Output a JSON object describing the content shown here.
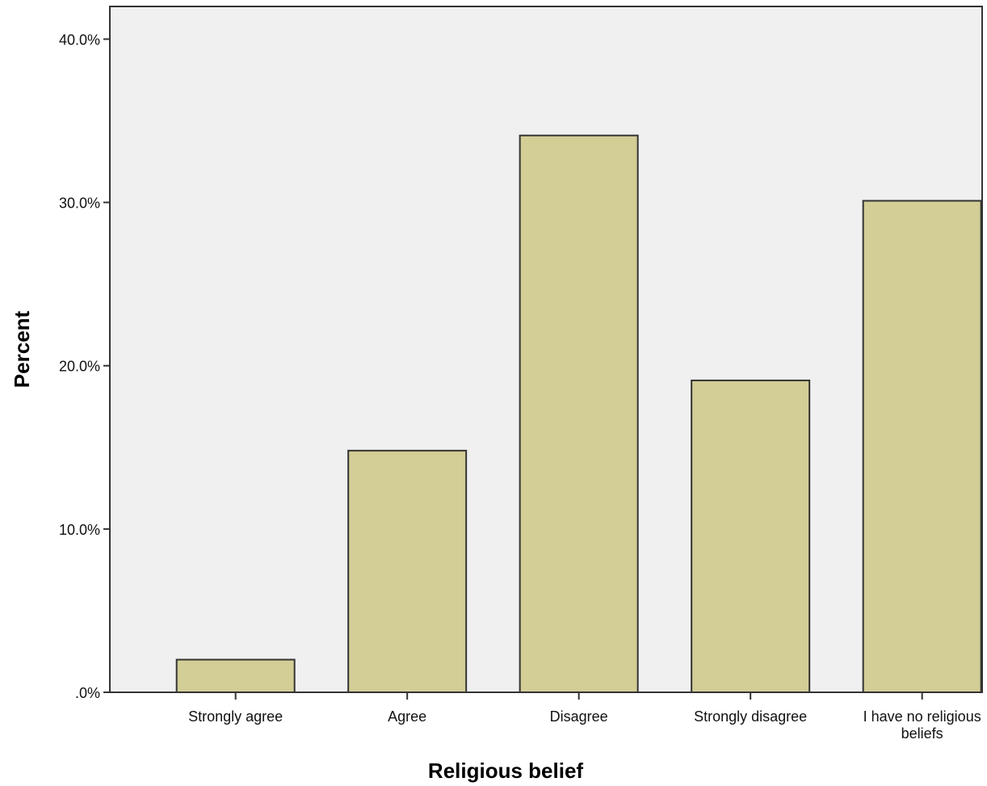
{
  "chart_data": {
    "type": "bar",
    "title": "",
    "xlabel": "Religious belief",
    "ylabel": "Percent",
    "categories": [
      [
        "Strongly agree"
      ],
      [
        "Agree"
      ],
      [
        "Disagree"
      ],
      [
        "Strongly disagree"
      ],
      [
        "I have no religious",
        "beliefs"
      ]
    ],
    "values": [
      2.0,
      14.8,
      34.1,
      19.1,
      30.1
    ],
    "ylim": [
      0,
      42
    ],
    "yticks": [
      0,
      10,
      20,
      30,
      40
    ],
    "ytick_labels": [
      ".0%",
      "10.0%",
      "20.0%",
      "30.0%",
      "40.0%"
    ],
    "grid": false,
    "colors": {
      "bar_fill": "#d3cd96",
      "bar_stroke": "#333333",
      "plot_background": "#f0f0f0",
      "axis": "#333333"
    }
  }
}
